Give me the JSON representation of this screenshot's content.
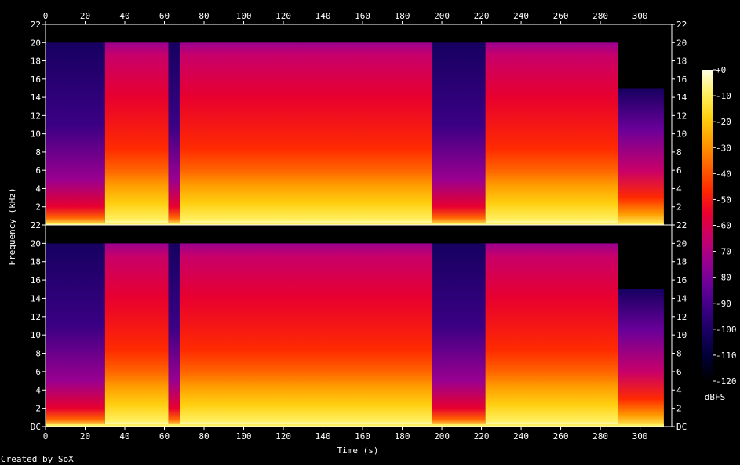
{
  "chart_data": {
    "type": "heatmap",
    "title": "",
    "xlabel": "Time (s)",
    "ylabel": "Frequency (kHz)",
    "xlim": [
      0,
      316
    ],
    "x_ticks": [
      0,
      20,
      40,
      60,
      80,
      100,
      120,
      140,
      160,
      180,
      200,
      220,
      240,
      260,
      280,
      300
    ],
    "channels": [
      {
        "name": "",
        "ylim": [
          0,
          22
        ],
        "y_ticks": [
          2,
          4,
          6,
          8,
          10,
          12,
          14,
          16,
          18,
          20,
          22
        ]
      },
      {
        "name": "",
        "ylim": [
          0,
          22
        ],
        "y_ticks": [
          2,
          4,
          6,
          8,
          10,
          12,
          14,
          16,
          18,
          20,
          22
        ]
      }
    ],
    "y_tick_zero_label": "DC",
    "colorbar": {
      "label": "dBFS",
      "range": [
        -120,
        0
      ],
      "ticks": [
        "+0",
        "-10",
        "-20",
        "-30",
        "-40",
        "-50",
        "-60",
        "-70",
        "-80",
        "-90",
        "-100",
        "-110",
        "-120"
      ]
    },
    "segments": [
      {
        "t_start": 0,
        "t_end": 30,
        "level": "quiet",
        "cutoff_khz": 20
      },
      {
        "t_start": 30,
        "t_end": 46,
        "level": "loud",
        "cutoff_khz": 20
      },
      {
        "t_start": 46,
        "t_end": 62,
        "level": "loud",
        "cutoff_khz": 20
      },
      {
        "t_start": 62,
        "t_end": 68,
        "level": "quiet",
        "cutoff_khz": 20
      },
      {
        "t_start": 68,
        "t_end": 100,
        "level": "loud",
        "cutoff_khz": 20
      },
      {
        "t_start": 100,
        "t_end": 195,
        "level": "loud",
        "cutoff_khz": 20
      },
      {
        "t_start": 195,
        "t_end": 222,
        "level": "quiet",
        "cutoff_khz": 20
      },
      {
        "t_start": 222,
        "t_end": 289,
        "level": "loud",
        "cutoff_khz": 20
      },
      {
        "t_start": 289,
        "t_end": 312,
        "level": "fade",
        "cutoff_khz": 15
      }
    ],
    "grid": false,
    "legend": "colorbar-right"
  },
  "footer": {
    "credit": "Created by SoX"
  },
  "colors": {
    "background": "#000000",
    "axis": "#ffffff",
    "palette": [
      "#000000",
      "#000033",
      "#160060",
      "#3a0084",
      "#6a009a",
      "#9a0090",
      "#c8006a",
      "#e8002e",
      "#ff2a00",
      "#ff6400",
      "#ff9c00",
      "#ffcf10",
      "#fff060",
      "#ffffe6"
    ]
  }
}
